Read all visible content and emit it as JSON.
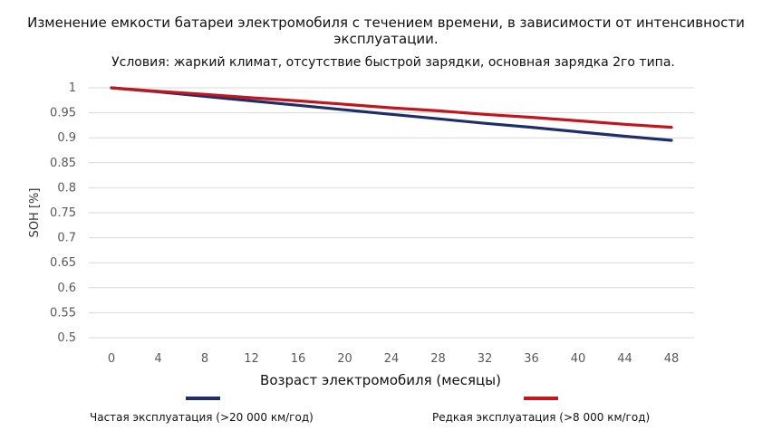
{
  "chart_data": {
    "type": "line",
    "title": "Изменение емкости батареи электромобиля с течением времени, в зависимости от интенсивности эксплуатации.",
    "subtitle": "Условия: жаркий климат, отсутствие быстрой зарядки, основная зарядка 2го типа.",
    "xlabel": "Возраст электромобиля (месяцы)",
    "ylabel": "SOH [%]",
    "x": [
      0,
      4,
      8,
      12,
      16,
      20,
      24,
      28,
      32,
      36,
      40,
      44,
      48
    ],
    "x_tick_labels": [
      "0",
      "4",
      "8",
      "12",
      "16",
      "20",
      "24",
      "28",
      "32",
      "36",
      "40",
      "44",
      "48"
    ],
    "y_tick_labels": [
      "1",
      "0.95",
      "0.9",
      "0.85",
      "0.8",
      "0.75",
      "0.7",
      "0.65",
      "0.6",
      "0.55",
      "0.5"
    ],
    "y_ticks": [
      1,
      0.95,
      0.9,
      0.85,
      0.8,
      0.75,
      0.7,
      0.65,
      0.6,
      0.55,
      0.5
    ],
    "ylim": [
      0.5,
      1
    ],
    "grid": true,
    "legend_position": "bottom",
    "series": [
      {
        "name": "Частая эксплуатация (>20 000 км/год)",
        "color": "#1f2e6b",
        "values": [
          1.0,
          0.992,
          0.983,
          0.974,
          0.965,
          0.956,
          0.947,
          0.938,
          0.929,
          0.921,
          0.912,
          0.903,
          0.895
        ]
      },
      {
        "name": "Редкая эксплуатация (>8 000 км/год)",
        "color": "#c0161e",
        "values": [
          1.0,
          0.993,
          0.987,
          0.98,
          0.974,
          0.967,
          0.96,
          0.954,
          0.947,
          0.941,
          0.934,
          0.927,
          0.921
        ]
      }
    ]
  }
}
